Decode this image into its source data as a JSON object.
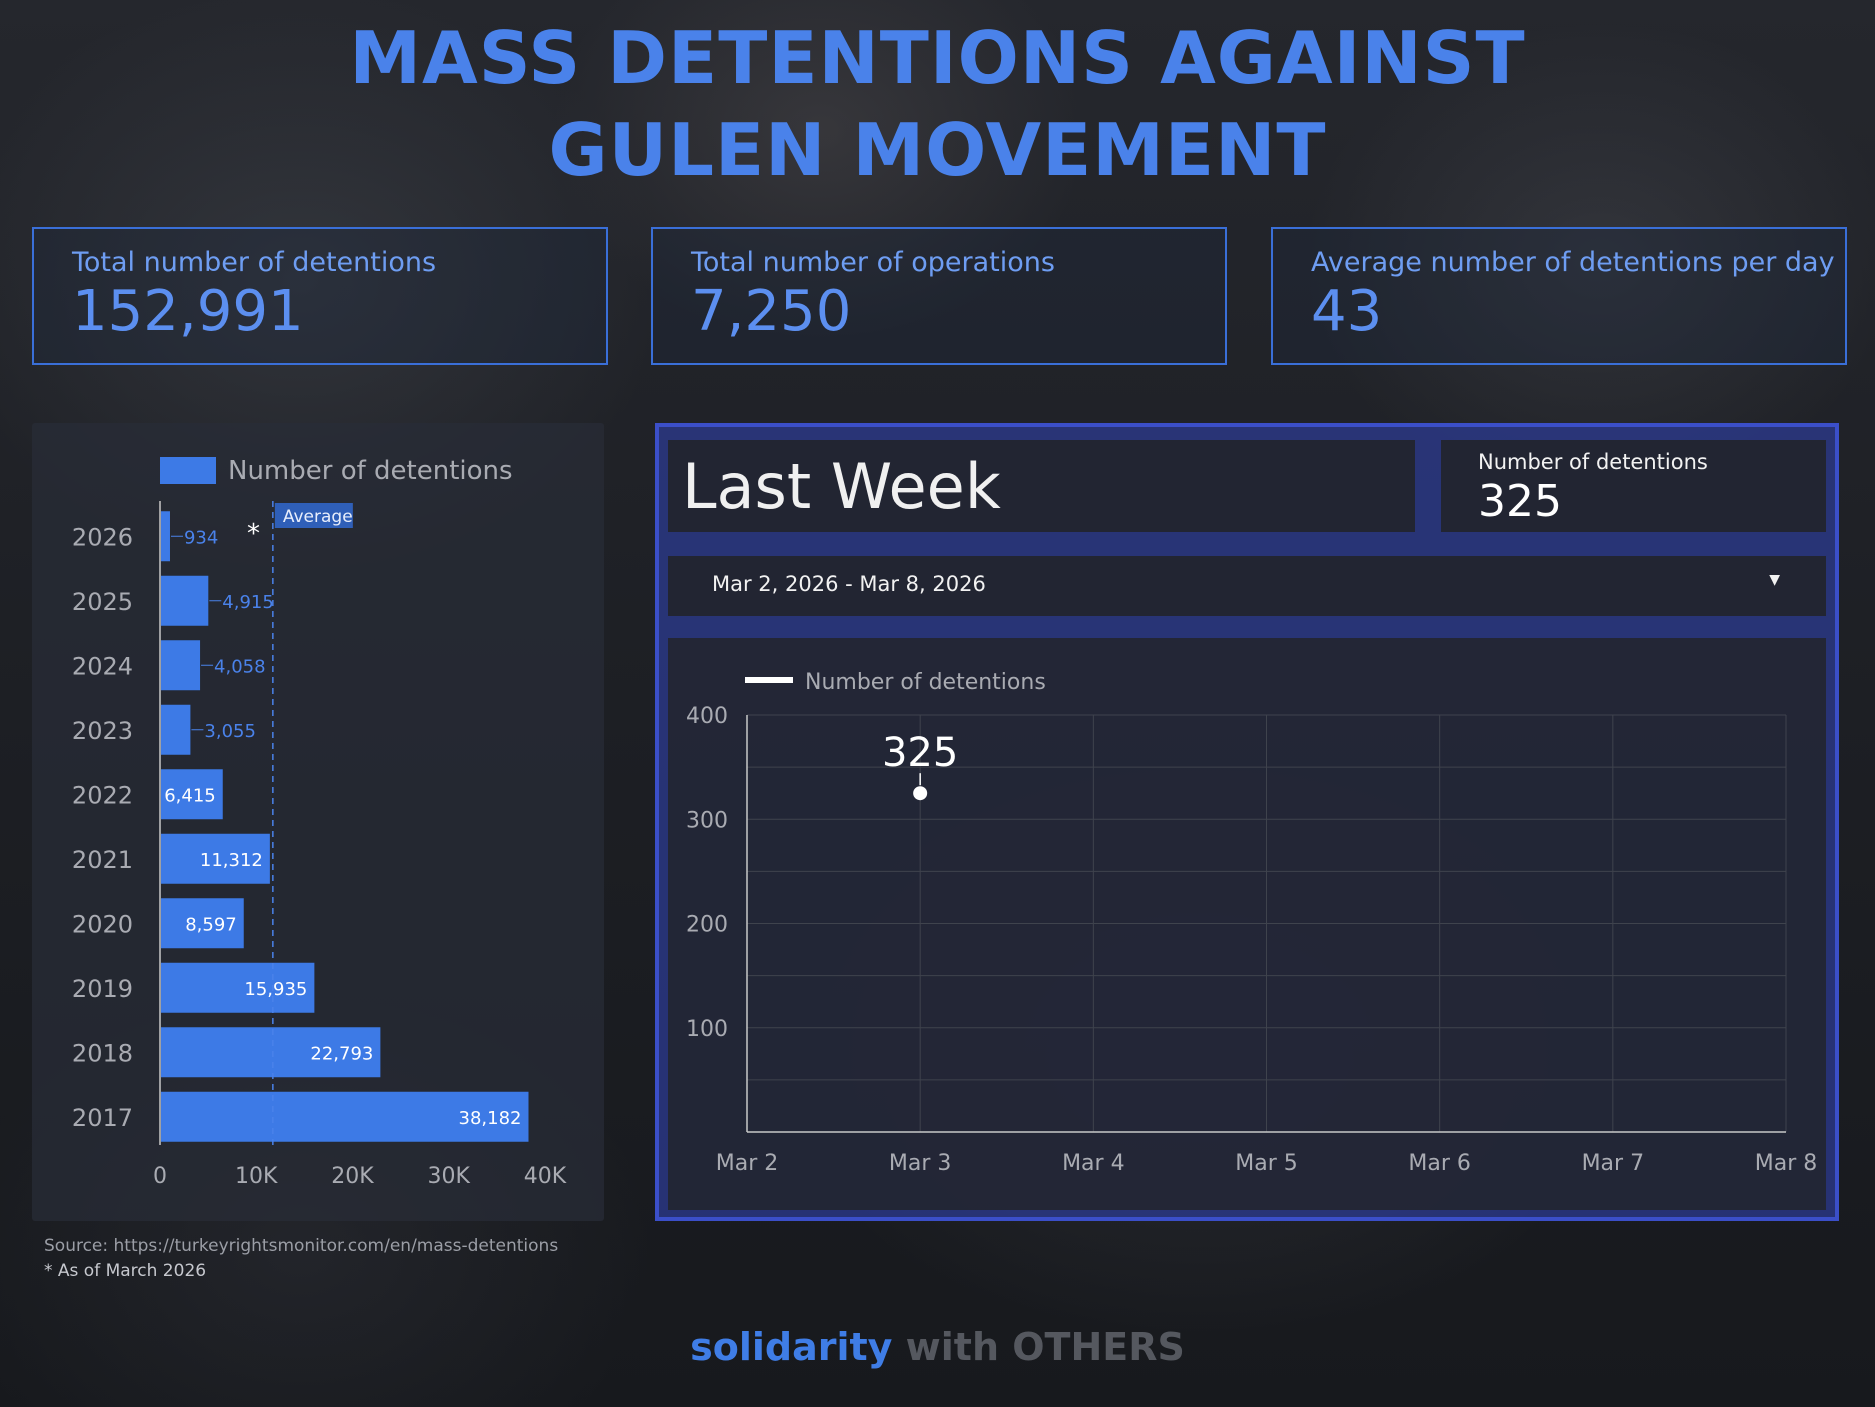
{
  "header": {
    "title_line1": "MASS DETENTIONS AGAINST",
    "title_line2": "GULEN MOVEMENT"
  },
  "kpis": [
    {
      "label": "Total number of detentions",
      "value": "152,991"
    },
    {
      "label": "Total number of operations",
      "value": "7,250"
    },
    {
      "label": "Average number of detentions per day",
      "value": "43"
    }
  ],
  "chart_data": [
    {
      "type": "bar",
      "orientation": "horizontal",
      "legend": "Number of detentions",
      "categories": [
        "2026",
        "2025",
        "2024",
        "2023",
        "2022",
        "2021",
        "2020",
        "2019",
        "2018",
        "2017"
      ],
      "values": [
        934,
        4915,
        4058,
        3055,
        6415,
        11312,
        8597,
        15935,
        22793,
        38182
      ],
      "value_labels": [
        "934",
        "4,915",
        "4,058",
        "3,055",
        "6,415",
        "11,312",
        "8,597",
        "15,935",
        "22,793",
        "38,182"
      ],
      "reference_line": {
        "label": "Average",
        "value": 11725
      },
      "annotation": "*",
      "xlim": [
        0,
        40000
      ],
      "xticks": [
        "0",
        "10K",
        "20K",
        "30K",
        "40K"
      ],
      "colors": {
        "bar": "#3d7ae6",
        "label_inside": "#ffffff",
        "label_outside": "#4a82ea"
      }
    },
    {
      "type": "line",
      "legend": "Number of detentions",
      "x": [
        "Mar 2",
        "Mar 3",
        "Mar 4",
        "Mar 5",
        "Mar 6",
        "Mar 7",
        "Mar 8"
      ],
      "points": [
        {
          "x": "Mar 3",
          "y": 325
        }
      ],
      "point_label": "325",
      "ylim": [
        0,
        400
      ],
      "yticks": [
        "100",
        "200",
        "300",
        "400"
      ],
      "grid": true,
      "colors": {
        "line": "#ffffff"
      }
    }
  ],
  "last_week": {
    "title": "Last Week",
    "scorecard_label": "Number of detentions",
    "scorecard_value": "325",
    "date_range": "Mar 2, 2026 - Mar 8, 2026",
    "dropdown_icon": "caret-down-icon"
  },
  "footer": {
    "source": "Source: https://turkeyrightsmonitor.com/en/mass-detentions",
    "note": "* As of March 2026",
    "brand_part1": "solidarity",
    "brand_part2": "with OTHERS"
  }
}
